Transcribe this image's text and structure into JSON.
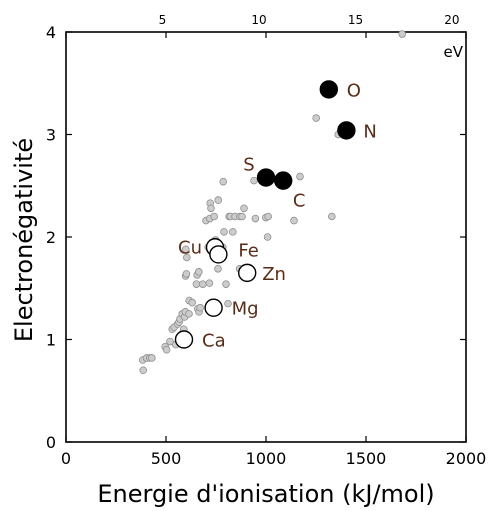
{
  "chart_data": {
    "type": "scatter",
    "title": "",
    "xlabel": "Energie d'ionisation (kJ/mol)",
    "ylabel": "Electronégativité",
    "xlim": [
      0,
      2000
    ],
    "ylim": [
      0,
      4
    ],
    "x_ticks": [
      "0",
      "500",
      "1000",
      "1500",
      "2000"
    ],
    "y_ticks": [
      "0",
      "1",
      "2",
      "3",
      "4"
    ],
    "top_axis": {
      "unit_label": "eV",
      "ticks": [
        {
          "value": 5,
          "label": "5"
        },
        {
          "value": 10,
          "label": "10"
        },
        {
          "value": 15,
          "label": "15"
        },
        {
          "value": 20,
          "label": "20"
        }
      ],
      "kj_per_unit": 96.485
    },
    "grid": false,
    "legend": "none",
    "colors": {
      "other_fill": "#cccccc",
      "other_stroke": "#8f8f8f",
      "nonmetal_fill": "#000000",
      "metal_fill": "#ffffff",
      "label_color": "#5a2c16",
      "axis_color": "#000000"
    },
    "series": [
      {
        "style": "other",
        "points": [
          [
            384,
            0.8
          ],
          [
            386,
            0.7
          ],
          [
            403,
            0.82
          ],
          [
            419,
            0.82
          ],
          [
            429,
            0.82
          ],
          [
            496,
            0.93
          ],
          [
            503,
            0.9
          ],
          [
            520,
            0.98
          ],
          [
            531,
            1.1
          ],
          [
            541,
            1.12
          ],
          [
            549,
            0.95
          ],
          [
            558,
            1.15
          ],
          [
            565,
            1.17
          ],
          [
            570,
            1.2
          ],
          [
            581,
            1.25
          ],
          [
            589,
            1.1
          ],
          [
            593,
            1.22
          ],
          [
            597,
            1.27
          ],
          [
            598,
            1.62
          ],
          [
            599,
            1.88
          ],
          [
            602,
            1.64
          ],
          [
            604,
            1.8
          ],
          [
            615,
            1.25
          ],
          [
            616,
            1.38
          ],
          [
            631,
            1.36
          ],
          [
            652,
            1.54
          ],
          [
            656,
            1.63
          ],
          [
            659,
            1.3
          ],
          [
            664,
            1.66
          ],
          [
            665,
            1.27
          ],
          [
            671,
            1.31
          ],
          [
            684,
            1.54
          ],
          [
            700,
            2.16
          ],
          [
            711,
            1.9
          ],
          [
            717,
            1.55
          ],
          [
            719,
            2.18
          ],
          [
            721,
            2.33
          ],
          [
            725,
            2.28
          ],
          [
            738,
            1.31
          ],
          [
            741,
            2.2
          ],
          [
            745,
            1.9
          ],
          [
            748,
            1.97
          ],
          [
            760,
            1.69
          ],
          [
            761,
            2.36
          ],
          [
            784,
            1.9
          ],
          [
            786,
            2.54
          ],
          [
            790,
            2.05
          ],
          [
            800,
            1.54
          ],
          [
            810,
            1.35
          ],
          [
            816,
            2.2
          ],
          [
            822,
            2.2
          ],
          [
            834,
            2.05
          ],
          [
            845,
            2.2
          ],
          [
            868,
            1.69
          ],
          [
            870,
            2.2
          ],
          [
            880,
            2.2
          ],
          [
            890,
            2.28
          ],
          [
            906,
            1.65
          ],
          [
            940,
            2.55
          ],
          [
            947,
            2.18
          ],
          [
            999,
            2.19
          ],
          [
            1008,
            2.0
          ],
          [
            1011,
            2.2
          ],
          [
            1086,
            2.55
          ],
          [
            1140,
            2.16
          ],
          [
            1170,
            2.59
          ],
          [
            1251,
            3.16
          ],
          [
            1312,
            3.44
          ],
          [
            1329,
            2.2
          ],
          [
            1361,
            3.0
          ],
          [
            1402,
            3.04
          ],
          [
            1681,
            3.98
          ]
        ]
      },
      {
        "style": "nonmetal",
        "points": [
          {
            "x": 1314,
            "y": 3.44,
            "label": "O"
          },
          {
            "x": 1402,
            "y": 3.04,
            "label": "N"
          },
          {
            "x": 1000,
            "y": 2.58,
            "label": "S"
          },
          {
            "x": 1086,
            "y": 2.55,
            "label": "C"
          }
        ]
      },
      {
        "style": "metal",
        "points": [
          {
            "x": 745,
            "y": 1.9,
            "label": "Cu"
          },
          {
            "x": 762,
            "y": 1.83,
            "label": "Fe"
          },
          {
            "x": 906,
            "y": 1.65,
            "label": "Zn"
          },
          {
            "x": 738,
            "y": 1.31,
            "label": "Mg"
          },
          {
            "x": 590,
            "y": 1.0,
            "label": "Ca"
          }
        ]
      }
    ]
  }
}
